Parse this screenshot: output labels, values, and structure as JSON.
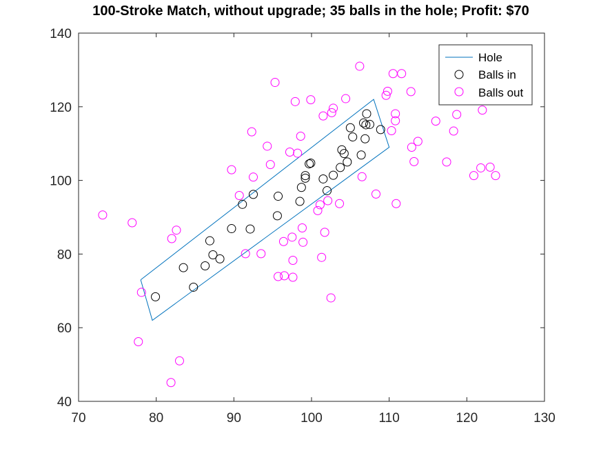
{
  "chart_data": {
    "type": "scatter",
    "title": "100-Stroke Match, without upgrade; 35 balls in the hole; Profit: $70",
    "xlabel": "",
    "ylabel": "",
    "xlim": [
      70,
      130
    ],
    "ylim": [
      40,
      140
    ],
    "xticks": [
      "70",
      "80",
      "90",
      "100",
      "110",
      "120",
      "130"
    ],
    "yticks": [
      "40",
      "60",
      "80",
      "100",
      "120",
      "140"
    ],
    "grid": false,
    "legend_position": "top-right",
    "legend": [
      "Hole",
      "Balls in",
      "Balls out"
    ],
    "colors": {
      "hole": "#0072BD",
      "balls_in": "#000000",
      "balls_out": "#FF00FF"
    },
    "hole": {
      "name": "Hole",
      "x": [
        78.0,
        108.0,
        110.0,
        79.5,
        78.0
      ],
      "y": [
        73.0,
        122.0,
        109.0,
        62.0,
        73.0
      ]
    },
    "series": [
      {
        "name": "Balls in",
        "points": [
          [
            79.9,
            68.4
          ],
          [
            84.8,
            71.0
          ],
          [
            83.5,
            76.3
          ],
          [
            86.3,
            76.8
          ],
          [
            87.3,
            79.8
          ],
          [
            88.2,
            78.7
          ],
          [
            86.9,
            83.6
          ],
          [
            89.7,
            86.9
          ],
          [
            92.1,
            86.8
          ],
          [
            91.1,
            93.5
          ],
          [
            92.5,
            96.2
          ],
          [
            95.6,
            90.4
          ],
          [
            95.7,
            95.7
          ],
          [
            98.5,
            94.3
          ],
          [
            98.7,
            98.1
          ],
          [
            99.2,
            100.6
          ],
          [
            99.2,
            101.3
          ],
          [
            99.7,
            104.5
          ],
          [
            99.9,
            104.7
          ],
          [
            101.5,
            100.4
          ],
          [
            102.0,
            97.2
          ],
          [
            102.8,
            101.4
          ],
          [
            103.7,
            103.5
          ],
          [
            104.2,
            107.3
          ],
          [
            103.9,
            108.3
          ],
          [
            104.6,
            105.0
          ],
          [
            105.3,
            111.8
          ],
          [
            105.0,
            114.3
          ],
          [
            106.4,
            106.9
          ],
          [
            106.7,
            115.6
          ],
          [
            107.0,
            115.1
          ],
          [
            107.5,
            115.2
          ],
          [
            107.1,
            118.1
          ],
          [
            106.9,
            111.3
          ],
          [
            108.9,
            113.8
          ]
        ]
      },
      {
        "name": "Balls out",
        "points": [
          [
            73.1,
            90.6
          ],
          [
            76.9,
            88.5
          ],
          [
            78.1,
            69.6
          ],
          [
            77.7,
            56.2
          ],
          [
            82.6,
            86.5
          ],
          [
            82.0,
            84.2
          ],
          [
            83.0,
            51.0
          ],
          [
            81.9,
            45.1
          ],
          [
            89.7,
            102.9
          ],
          [
            90.7,
            95.9
          ],
          [
            91.5,
            80.1
          ],
          [
            92.5,
            100.9
          ],
          [
            92.3,
            113.2
          ],
          [
            93.5,
            80.1
          ],
          [
            94.3,
            109.3
          ],
          [
            94.7,
            104.3
          ],
          [
            95.3,
            126.6
          ],
          [
            95.7,
            73.9
          ],
          [
            96.5,
            74.1
          ],
          [
            96.4,
            83.4
          ],
          [
            97.2,
            107.7
          ],
          [
            97.5,
            84.6
          ],
          [
            97.6,
            78.3
          ],
          [
            97.6,
            73.7
          ],
          [
            97.9,
            121.4
          ],
          [
            98.2,
            107.4
          ],
          [
            98.6,
            112.0
          ],
          [
            98.9,
            83.2
          ],
          [
            98.8,
            87.1
          ],
          [
            99.9,
            121.9
          ],
          [
            100.8,
            91.8
          ],
          [
            101.1,
            93.4
          ],
          [
            101.3,
            79.1
          ],
          [
            101.5,
            117.5
          ],
          [
            101.7,
            85.9
          ],
          [
            102.1,
            94.5
          ],
          [
            102.5,
            68.1
          ],
          [
            102.6,
            118.4
          ],
          [
            102.8,
            119.6
          ],
          [
            103.6,
            93.7
          ],
          [
            104.4,
            122.2
          ],
          [
            106.2,
            131.0
          ],
          [
            106.5,
            101.0
          ],
          [
            108.3,
            96.3
          ],
          [
            109.6,
            123.1
          ],
          [
            109.8,
            124.2
          ],
          [
            110.3,
            113.5
          ],
          [
            110.5,
            129.0
          ],
          [
            110.8,
            116.2
          ],
          [
            110.8,
            118.1
          ],
          [
            110.9,
            93.7
          ],
          [
            111.6,
            129.0
          ],
          [
            112.8,
            124.1
          ],
          [
            112.9,
            109.0
          ],
          [
            113.2,
            105.1
          ],
          [
            113.7,
            110.6
          ],
          [
            116.0,
            116.1
          ],
          [
            117.4,
            105.0
          ],
          [
            118.3,
            113.4
          ],
          [
            118.7,
            117.9
          ],
          [
            120.9,
            101.3
          ],
          [
            122.0,
            119.1
          ],
          [
            121.8,
            103.4
          ],
          [
            123.0,
            103.6
          ],
          [
            123.7,
            101.3
          ]
        ]
      }
    ]
  }
}
